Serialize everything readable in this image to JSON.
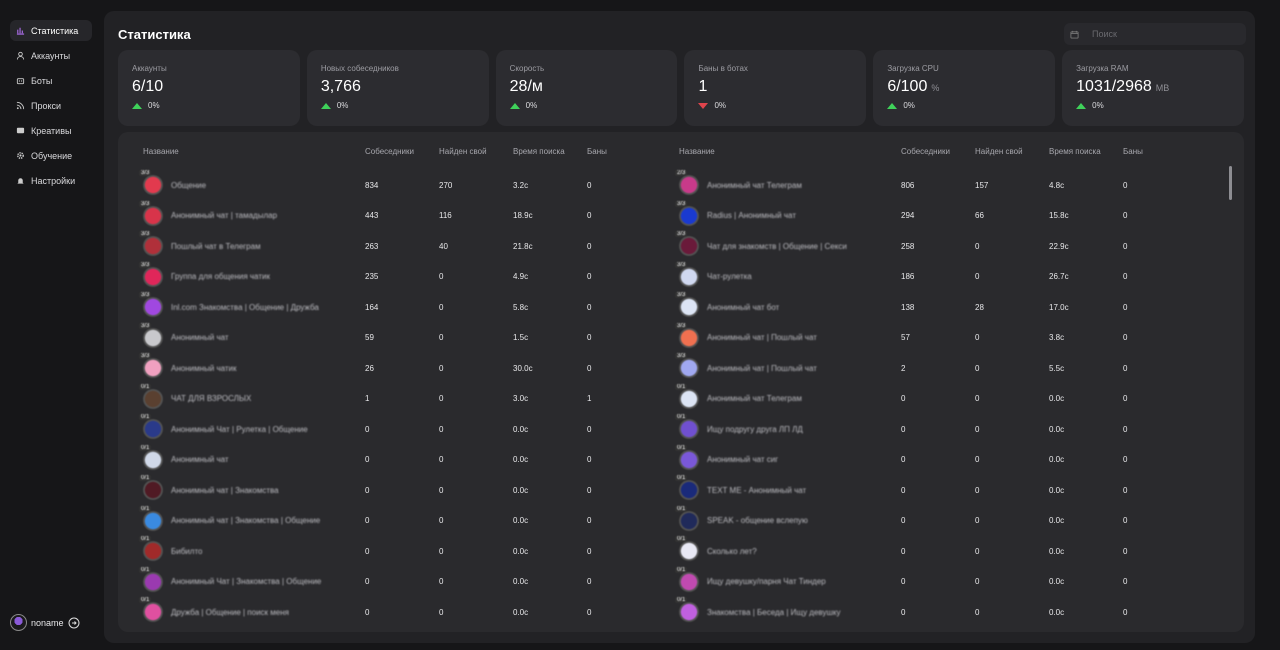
{
  "sidebar": {
    "items": [
      {
        "label": "Статистика",
        "icon": "chart-icon",
        "active": true
      },
      {
        "label": "Аккаунты",
        "icon": "user-icon",
        "active": false
      },
      {
        "label": "Боты",
        "icon": "bot-icon",
        "active": false
      },
      {
        "label": "Прокси",
        "icon": "rss-icon",
        "active": false
      },
      {
        "label": "Креативы",
        "icon": "image-icon",
        "active": false
      },
      {
        "label": "Обучение",
        "icon": "gear-icon",
        "active": false
      },
      {
        "label": "Настройки",
        "icon": "bell-icon",
        "active": false
      }
    ],
    "user": {
      "name": "noname"
    }
  },
  "header": {
    "title": "Статистика",
    "search_placeholder": "Поиск"
  },
  "stats": [
    {
      "label": "Аккаунты",
      "value": "6/10",
      "unit": "",
      "delta": "0%",
      "trend": "up"
    },
    {
      "label": "Новых собеседников",
      "value": "3,766",
      "unit": "",
      "delta": "0%",
      "trend": "up"
    },
    {
      "label": "Скорость",
      "value": "28/м",
      "unit": "",
      "delta": "0%",
      "trend": "up"
    },
    {
      "label": "Баны в ботах",
      "value": "1",
      "unit": "",
      "delta": "0%",
      "trend": "down"
    },
    {
      "label": "Загрузка CPU",
      "value": "6/100",
      "unit": "%",
      "delta": "0%",
      "trend": "up"
    },
    {
      "label": "Загрузка RAM",
      "value": "1031/2968",
      "unit": "MB",
      "delta": "0%",
      "trend": "up"
    }
  ],
  "table": {
    "columns": [
      "Название",
      "Собеседники",
      "Найден свой",
      "Время поиска",
      "Баны"
    ],
    "left": [
      {
        "name": "Общение",
        "sob": "834",
        "found": "270",
        "time": "3.2с",
        "bans": "0",
        "color": "#e23a4e",
        "badge": "3/3"
      },
      {
        "name": "Анонимный чат | тамадылар",
        "sob": "443",
        "found": "116",
        "time": "18.9с",
        "bans": "0",
        "color": "#d8344a",
        "badge": "3/3"
      },
      {
        "name": "Пошлый чат в Телеграм",
        "sob": "263",
        "found": "40",
        "time": "21.8с",
        "bans": "0",
        "color": "#b0303a",
        "badge": "3/3"
      },
      {
        "name": "Группа для общения чатик",
        "sob": "235",
        "found": "0",
        "time": "4.9с",
        "bans": "0",
        "color": "#e0265a",
        "badge": "3/3"
      },
      {
        "name": "Inl.com Знакомства | Общение | Дружба",
        "sob": "164",
        "found": "0",
        "time": "5.8с",
        "bans": "0",
        "color": "#a048e0",
        "badge": "3/3"
      },
      {
        "name": "Анонимный чат",
        "sob": "59",
        "found": "0",
        "time": "1.5с",
        "bans": "0",
        "color": "#c8c8cc",
        "badge": "3/3"
      },
      {
        "name": "Анонимный чатик",
        "sob": "26",
        "found": "0",
        "time": "30.0с",
        "bans": "0",
        "color": "#f0a0c0",
        "badge": "3/3"
      },
      {
        "name": "ЧАТ ДЛЯ ВЗРОСЛЫХ",
        "sob": "1",
        "found": "0",
        "time": "3.0с",
        "bans": "1",
        "color": "#5a4030",
        "badge": "0/1"
      },
      {
        "name": "Анонимный Чат | Рулетка | Общение",
        "sob": "0",
        "found": "0",
        "time": "0.0с",
        "bans": "0",
        "color": "#2a3a8a",
        "badge": "0/1"
      },
      {
        "name": "Анонимный чат",
        "sob": "0",
        "found": "0",
        "time": "0.0с",
        "bans": "0",
        "color": "#d0d8e8",
        "badge": "0/1"
      },
      {
        "name": "Анонимный чат | Знакомства",
        "sob": "0",
        "found": "0",
        "time": "0.0с",
        "bans": "0",
        "color": "#501a24",
        "badge": "0/1"
      },
      {
        "name": "Анонимный чат | Знакомства | Общение",
        "sob": "0",
        "found": "0",
        "time": "0.0с",
        "bans": "0",
        "color": "#3a8ae0",
        "badge": "0/1"
      },
      {
        "name": "Бибилто",
        "sob": "0",
        "found": "0",
        "time": "0.0с",
        "bans": "0",
        "color": "#a02a2a",
        "badge": "0/1"
      },
      {
        "name": "Анонимный Чат | Знакомства | Общение",
        "sob": "0",
        "found": "0",
        "time": "0.0с",
        "bans": "0",
        "color": "#9a3ab0",
        "badge": "0/1"
      },
      {
        "name": "Дружба | Общение | поиск меня",
        "sob": "0",
        "found": "0",
        "time": "0.0с",
        "bans": "0",
        "color": "#e050a0",
        "badge": "0/1"
      }
    ],
    "right": [
      {
        "name": "Анонимный чат Телеграм",
        "sob": "806",
        "found": "157",
        "time": "4.8с",
        "bans": "0",
        "color": "#c83a8a",
        "badge": "2/3"
      },
      {
        "name": "Radius | Анонимный чат",
        "sob": "294",
        "found": "66",
        "time": "15.8с",
        "bans": "0",
        "color": "#1a3ad0",
        "badge": "3/3"
      },
      {
        "name": "Чат для знакомств | Общение | Секси",
        "sob": "258",
        "found": "0",
        "time": "22.9с",
        "bans": "0",
        "color": "#6a1a3a",
        "badge": "3/3"
      },
      {
        "name": "Чат-рулетка",
        "sob": "186",
        "found": "0",
        "time": "26.7с",
        "bans": "0",
        "color": "#d0d8f0",
        "badge": "3/3"
      },
      {
        "name": "Анонимный чат бот",
        "sob": "138",
        "found": "28",
        "time": "17.0с",
        "bans": "0",
        "color": "#dce4f4",
        "badge": "3/3"
      },
      {
        "name": "Анонимный чат | Пошлый чат",
        "sob": "57",
        "found": "0",
        "time": "3.8с",
        "bans": "0",
        "color": "#f07050",
        "badge": "3/3"
      },
      {
        "name": "Анонимный чат | Пошлый чат",
        "sob": "2",
        "found": "0",
        "time": "5.5с",
        "bans": "0",
        "color": "#a0a8f0",
        "badge": "3/3"
      },
      {
        "name": "Анонимный чат Телеграм",
        "sob": "0",
        "found": "0",
        "time": "0.0с",
        "bans": "0",
        "color": "#dce4f4",
        "badge": "0/1"
      },
      {
        "name": "Ищу подругу друга ЛП ЛД",
        "sob": "0",
        "found": "0",
        "time": "0.0с",
        "bans": "0",
        "color": "#7050d0",
        "badge": "0/1"
      },
      {
        "name": "Анонимный чат сиг",
        "sob": "0",
        "found": "0",
        "time": "0.0с",
        "bans": "0",
        "color": "#7a58d8",
        "badge": "0/1"
      },
      {
        "name": "TEXT ME - Анонимный чат",
        "sob": "0",
        "found": "0",
        "time": "0.0с",
        "bans": "0",
        "color": "#1a2a7a",
        "badge": "0/1"
      },
      {
        "name": "SPEAK - общение вслепую",
        "sob": "0",
        "found": "0",
        "time": "0.0с",
        "bans": "0",
        "color": "#202a5a",
        "badge": "0/1"
      },
      {
        "name": "Сколько лет?",
        "sob": "0",
        "found": "0",
        "time": "0.0с",
        "bans": "0",
        "color": "#e8e8f4",
        "badge": "0/1"
      },
      {
        "name": "Ищу девушку/парня Чат Тиндер",
        "sob": "0",
        "found": "0",
        "time": "0.0с",
        "bans": "0",
        "color": "#c04ab0",
        "badge": "0/1"
      },
      {
        "name": "Знакомства | Беседа | Ищу девушку",
        "sob": "0",
        "found": "0",
        "time": "0.0с",
        "bans": "0",
        "color": "#c060e0",
        "badge": "0/1"
      }
    ]
  }
}
